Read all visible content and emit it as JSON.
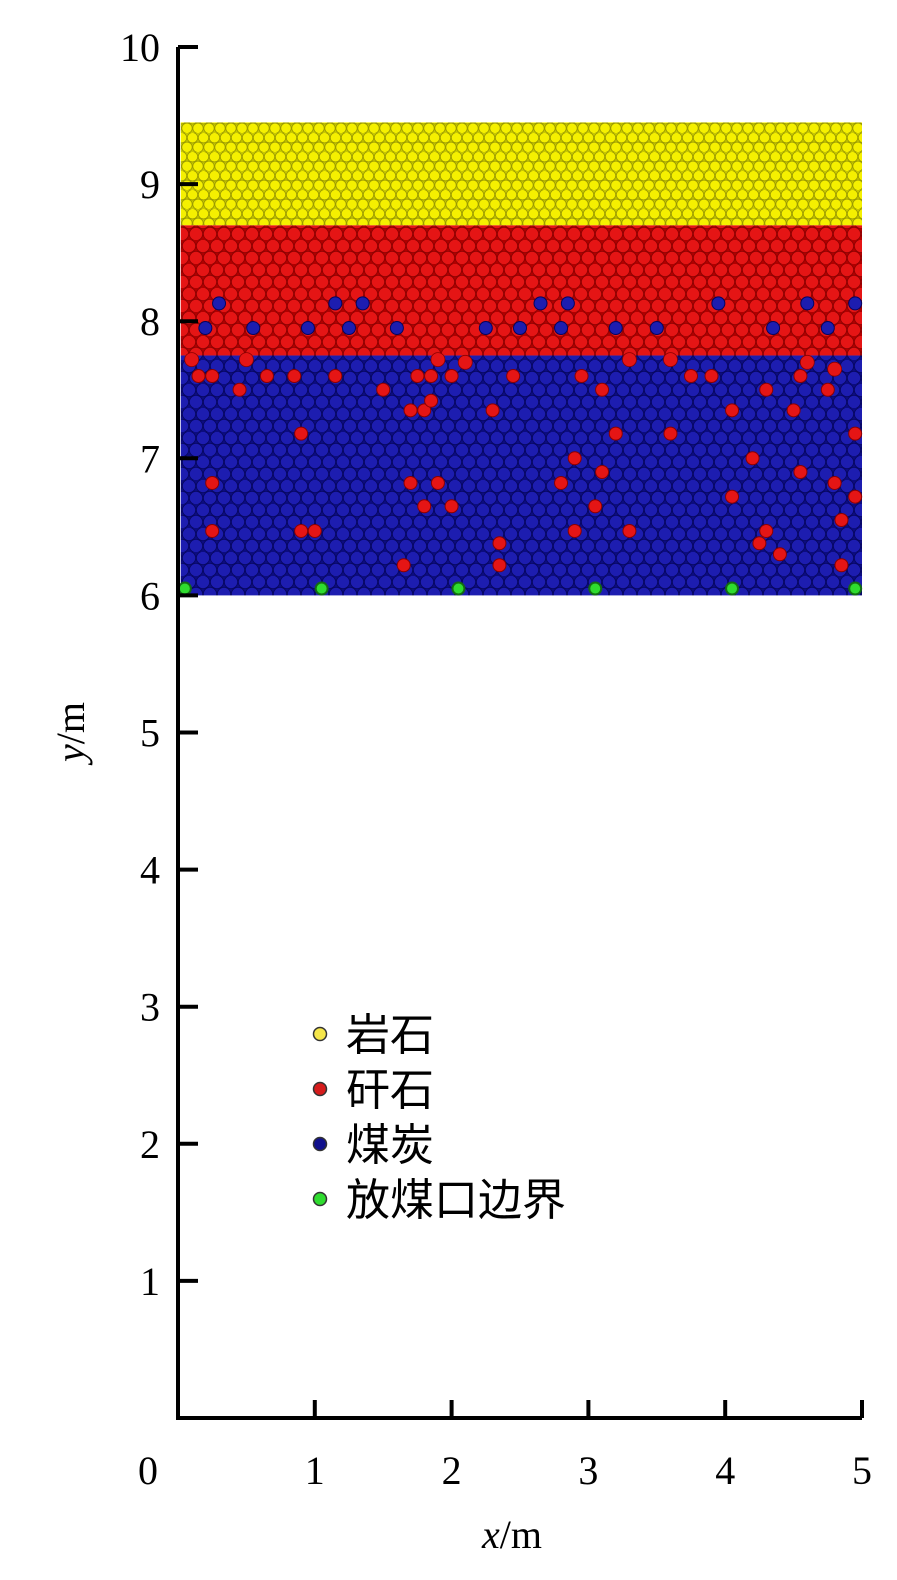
{
  "chart_data": {
    "type": "scatter",
    "title": "",
    "xlabel_var": "x",
    "xlabel_unit": "/m",
    "ylabel_var": "y",
    "ylabel_unit": "/m",
    "xlim": [
      0,
      5
    ],
    "ylim": [
      0,
      10
    ],
    "x_ticks": [
      0,
      1,
      2,
      3,
      4,
      5
    ],
    "y_ticks": [
      1,
      2,
      3,
      4,
      5,
      6,
      7,
      8,
      9,
      10
    ],
    "grid": false,
    "legend_position": "lower-left",
    "layers": {
      "rock": {
        "y_range": [
          8.7,
          9.45
        ],
        "color": "#f2f200"
      },
      "gangue": {
        "y_range": [
          7.75,
          8.7
        ],
        "color": "#e01010"
      },
      "coal": {
        "y_range": [
          6.0,
          7.75
        ],
        "color": "#1a1aaa"
      }
    },
    "series": [
      {
        "name": "岩石",
        "color": "#f5e64a"
      },
      {
        "name": "矸石",
        "color": "#d61c1c"
      },
      {
        "name": "煤炭",
        "color": "#10108c"
      },
      {
        "name": "放煤口边界",
        "color": "#2fdc2f"
      }
    ],
    "coal_in_gangue_points": [
      [
        0.3,
        8.13
      ],
      [
        1.15,
        8.13
      ],
      [
        1.35,
        8.13
      ],
      [
        2.65,
        8.13
      ],
      [
        2.85,
        8.13
      ],
      [
        3.95,
        8.13
      ],
      [
        4.6,
        8.13
      ],
      [
        4.95,
        8.13
      ],
      [
        0.2,
        7.95
      ],
      [
        0.55,
        7.95
      ],
      [
        0.95,
        7.95
      ],
      [
        1.25,
        7.95
      ],
      [
        1.6,
        7.95
      ],
      [
        2.25,
        7.95
      ],
      [
        2.5,
        7.95
      ],
      [
        2.8,
        7.95
      ],
      [
        3.2,
        7.95
      ],
      [
        3.5,
        7.95
      ],
      [
        4.35,
        7.95
      ],
      [
        4.75,
        7.95
      ]
    ],
    "gangue_in_coal_points": [
      [
        0.15,
        7.6
      ],
      [
        0.25,
        7.6
      ],
      [
        0.45,
        7.5
      ],
      [
        0.65,
        7.6
      ],
      [
        0.85,
        7.6
      ],
      [
        1.15,
        7.6
      ],
      [
        1.5,
        7.5
      ],
      [
        1.75,
        7.6
      ],
      [
        1.85,
        7.6
      ],
      [
        2.0,
        7.6
      ],
      [
        2.45,
        7.6
      ],
      [
        2.95,
        7.6
      ],
      [
        3.1,
        7.5
      ],
      [
        3.75,
        7.6
      ],
      [
        3.9,
        7.6
      ],
      [
        4.3,
        7.5
      ],
      [
        4.55,
        7.6
      ],
      [
        4.75,
        7.5
      ],
      [
        1.7,
        7.35
      ],
      [
        1.8,
        7.35
      ],
      [
        1.85,
        7.42
      ],
      [
        2.3,
        7.35
      ],
      [
        4.05,
        7.35
      ],
      [
        4.5,
        7.35
      ],
      [
        0.9,
        7.18
      ],
      [
        3.2,
        7.18
      ],
      [
        3.6,
        7.18
      ],
      [
        4.95,
        7.18
      ],
      [
        2.9,
        7.0
      ],
      [
        4.2,
        7.0
      ],
      [
        3.1,
        6.9
      ],
      [
        4.55,
        6.9
      ],
      [
        0.25,
        6.82
      ],
      [
        1.7,
        6.82
      ],
      [
        1.9,
        6.82
      ],
      [
        2.8,
        6.82
      ],
      [
        4.8,
        6.82
      ],
      [
        4.05,
        6.72
      ],
      [
        4.95,
        6.72
      ],
      [
        1.8,
        6.65
      ],
      [
        2.0,
        6.65
      ],
      [
        3.05,
        6.65
      ],
      [
        4.85,
        6.55
      ],
      [
        0.25,
        6.47
      ],
      [
        0.9,
        6.47
      ],
      [
        1.0,
        6.47
      ],
      [
        2.9,
        6.47
      ],
      [
        3.3,
        6.47
      ],
      [
        4.3,
        6.47
      ],
      [
        2.35,
        6.38
      ],
      [
        4.25,
        6.38
      ],
      [
        4.4,
        6.3
      ],
      [
        1.65,
        6.22
      ],
      [
        2.35,
        6.22
      ],
      [
        4.85,
        6.22
      ]
    ],
    "boundary_points": [
      [
        0.05,
        6.05
      ],
      [
        1.05,
        6.05
      ],
      [
        2.05,
        6.05
      ],
      [
        3.05,
        6.05
      ],
      [
        4.05,
        6.05
      ],
      [
        4.95,
        6.05
      ]
    ]
  }
}
